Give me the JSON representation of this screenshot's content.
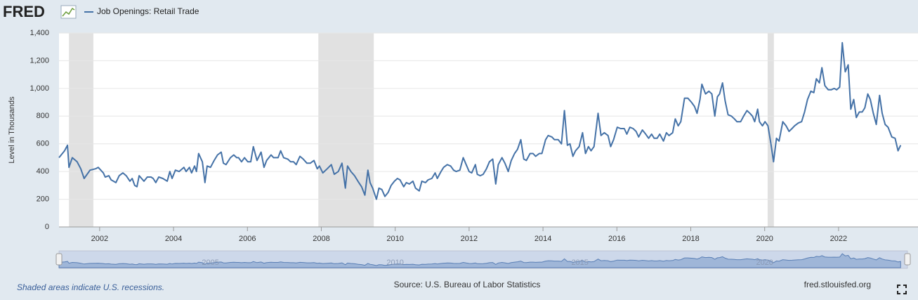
{
  "brand": "FRED",
  "footer": {
    "note": "Shaded areas indicate U.S. recessions.",
    "source": "Source: U.S. Bureau of Labor Statistics",
    "site": "fred.stlouisfed.org"
  },
  "chart_data": {
    "type": "line",
    "y_label": "Level in Thousands",
    "xlim": [
      2000.9,
      2024.15
    ],
    "xticks": [
      2002,
      2004,
      2006,
      2008,
      2010,
      2012,
      2014,
      2016,
      2018,
      2020,
      2022
    ],
    "ylim": [
      0,
      1400
    ],
    "yticks": [
      0,
      200,
      400,
      600,
      800,
      {
        "value": 1000,
        "label": "1,000"
      },
      {
        "value": 1200,
        "label": "1,200"
      },
      {
        "value": 1400,
        "label": "1,400"
      }
    ],
    "grid": true,
    "recessions": [
      [
        2001.17,
        2001.83
      ],
      [
        2007.92,
        2009.42
      ],
      [
        2020.08,
        2020.25
      ]
    ],
    "navigator_ticks": [
      2005,
      2010,
      2015,
      2020
    ],
    "x": [
      2000.9,
      2001.05,
      2001.13,
      2001.17,
      2001.26,
      2001.39,
      2001.49,
      2001.58,
      2001.74,
      2001.89,
      2001.96,
      2002.1,
      2002.15,
      2002.25,
      2002.31,
      2002.44,
      2002.53,
      2002.63,
      2002.72,
      2002.82,
      2002.88,
      2002.95,
      2003.01,
      2003.07,
      2003.2,
      2003.29,
      2003.39,
      2003.45,
      2003.52,
      2003.6,
      2003.71,
      2003.83,
      2003.9,
      2003.96,
      2004.05,
      2004.15,
      2004.28,
      2004.34,
      2004.43,
      2004.49,
      2004.57,
      2004.62,
      2004.68,
      2004.78,
      2004.85,
      2004.91,
      2005.0,
      2005.1,
      2005.19,
      2005.29,
      2005.35,
      2005.42,
      2005.54,
      2005.63,
      2005.71,
      2005.76,
      2005.84,
      2005.92,
      2006.01,
      2006.09,
      2006.16,
      2006.26,
      2006.37,
      2006.45,
      2006.52,
      2006.64,
      2006.71,
      2006.83,
      2006.9,
      2006.98,
      2007.09,
      2007.17,
      2007.25,
      2007.32,
      2007.42,
      2007.51,
      2007.61,
      2007.7,
      2007.8,
      2007.89,
      2007.95,
      2008.04,
      2008.16,
      2008.27,
      2008.35,
      2008.46,
      2008.56,
      2008.65,
      2008.71,
      2008.8,
      2008.9,
      2008.99,
      2009.09,
      2009.18,
      2009.26,
      2009.32,
      2009.39,
      2009.49,
      2009.56,
      2009.64,
      2009.72,
      2009.81,
      2009.89,
      2009.98,
      2010.06,
      2010.13,
      2010.23,
      2010.3,
      2010.38,
      2010.48,
      2010.55,
      2010.65,
      2010.72,
      2010.82,
      2010.89,
      2010.99,
      2011.08,
      2011.14,
      2011.24,
      2011.31,
      2011.41,
      2011.5,
      2011.58,
      2011.65,
      2011.75,
      2011.84,
      2011.92,
      2012.0,
      2012.07,
      2012.17,
      2012.22,
      2012.3,
      2012.38,
      2012.47,
      2012.55,
      2012.64,
      2012.72,
      2012.79,
      2012.89,
      2012.97,
      2013.06,
      2013.14,
      2013.23,
      2013.31,
      2013.4,
      2013.48,
      2013.55,
      2013.65,
      2013.73,
      2013.8,
      2013.9,
      2013.97,
      2014.07,
      2014.14,
      2014.24,
      2014.31,
      2014.41,
      2014.5,
      2014.58,
      2014.66,
      2014.73,
      2014.81,
      2014.88,
      2014.98,
      2015.07,
      2015.15,
      2015.23,
      2015.3,
      2015.38,
      2015.49,
      2015.57,
      2015.66,
      2015.76,
      2015.83,
      2015.91,
      2016.01,
      2016.1,
      2016.2,
      2016.27,
      2016.35,
      2016.44,
      2016.52,
      2016.59,
      2016.69,
      2016.78,
      2016.86,
      2016.94,
      2017.01,
      2017.09,
      2017.16,
      2017.26,
      2017.34,
      2017.41,
      2017.51,
      2017.58,
      2017.66,
      2017.73,
      2017.83,
      2017.92,
      2018.02,
      2018.1,
      2018.17,
      2018.25,
      2018.3,
      2018.4,
      2018.49,
      2018.57,
      2018.65,
      2018.72,
      2018.78,
      2018.86,
      2018.93,
      2019.01,
      2019.1,
      2019.18,
      2019.25,
      2019.35,
      2019.43,
      2019.52,
      2019.6,
      2019.67,
      2019.73,
      2019.81,
      2019.86,
      2019.94,
      2020.01,
      2020.09,
      2020.17,
      2020.24,
      2020.32,
      2020.39,
      2020.49,
      2020.58,
      2020.66,
      2020.74,
      2020.81,
      2020.91,
      2021.0,
      2021.08,
      2021.16,
      2021.25,
      2021.33,
      2021.4,
      2021.48,
      2021.55,
      2021.63,
      2021.72,
      2021.8,
      2021.88,
      2021.95,
      2022.03,
      2022.1,
      2022.18,
      2022.26,
      2022.33,
      2022.41,
      2022.48,
      2022.56,
      2022.64,
      2022.71,
      2022.79,
      2022.86,
      2022.94,
      2023.02,
      2023.11,
      2023.18,
      2023.26,
      2023.34,
      2023.44,
      2023.53,
      2023.61,
      2023.68
    ],
    "series": [
      {
        "name": "Job Openings: Retail Trade",
        "color": "#4572a7",
        "values": [
          500,
          550,
          590,
          430,
          500,
          470,
          420,
          350,
          410,
          420,
          430,
          390,
          360,
          370,
          340,
          320,
          370,
          390,
          370,
          330,
          350,
          300,
          290,
          370,
          330,
          360,
          360,
          350,
          320,
          360,
          350,
          330,
          400,
          350,
          410,
          400,
          430,
          400,
          430,
          390,
          440,
          400,
          530,
          470,
          320,
          440,
          430,
          480,
          520,
          540,
          460,
          450,
          500,
          520,
          500,
          500,
          470,
          500,
          470,
          470,
          580,
          480,
          540,
          430,
          480,
          520,
          500,
          500,
          550,
          500,
          490,
          470,
          470,
          450,
          510,
          490,
          460,
          460,
          480,
          420,
          440,
          390,
          420,
          450,
          380,
          400,
          460,
          280,
          440,
          400,
          370,
          330,
          290,
          230,
          410,
          320,
          280,
          200,
          280,
          270,
          220,
          250,
          300,
          330,
          350,
          340,
          290,
          320,
          310,
          330,
          280,
          260,
          330,
          320,
          340,
          350,
          390,
          350,
          400,
          430,
          450,
          440,
          410,
          400,
          410,
          500,
          450,
          400,
          390,
          450,
          380,
          370,
          380,
          420,
          470,
          490,
          310,
          450,
          500,
          460,
          400,
          480,
          530,
          560,
          630,
          490,
          480,
          530,
          530,
          510,
          530,
          530,
          630,
          660,
          650,
          630,
          630,
          600,
          840,
          590,
          600,
          510,
          550,
          580,
          680,
          530,
          580,
          550,
          580,
          820,
          660,
          680,
          660,
          580,
          630,
          720,
          710,
          710,
          670,
          720,
          710,
          690,
          650,
          700,
          670,
          640,
          670,
          640,
          640,
          670,
          620,
          680,
          660,
          680,
          780,
          730,
          760,
          930,
          930,
          900,
          870,
          820,
          920,
          1030,
          960,
          980,
          960,
          800,
          940,
          960,
          1040,
          910,
          810,
          800,
          780,
          760,
          760,
          800,
          840,
          820,
          800,
          760,
          850,
          760,
          730,
          760,
          730,
          600,
          470,
          640,
          620,
          760,
          730,
          690,
          710,
          730,
          750,
          760,
          830,
          920,
          980,
          970,
          1070,
          1040,
          1150,
          1020,
          990,
          990,
          1000,
          990,
          1010,
          1330,
          1120,
          1170,
          850,
          920,
          790,
          830,
          830,
          860,
          960,
          920,
          820,
          740,
          950,
          820,
          740,
          720,
          650,
          640,
          550,
          590
        ]
      }
    ]
  }
}
